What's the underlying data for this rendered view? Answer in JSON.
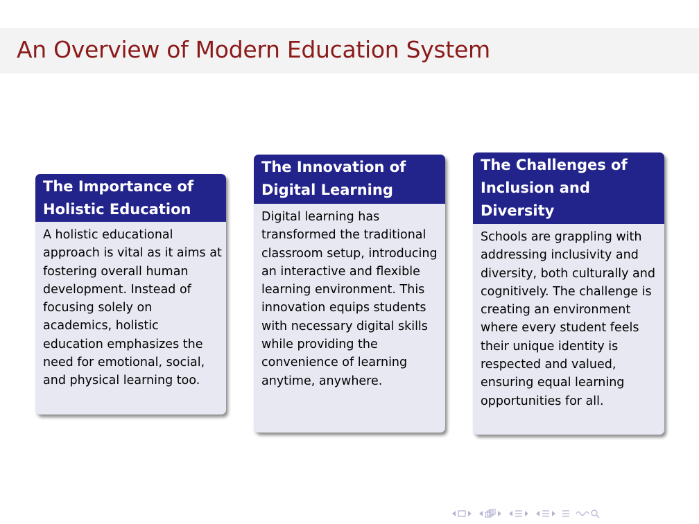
{
  "slide": {
    "title": "An Overview of Modern Education System"
  },
  "blocks": [
    {
      "title": "The Importance of Holistic Education",
      "body": "A holistic educational approach is vital as it aims at fostering overall human development. Instead of focusing solely on academics, holistic education emphasizes the need for emotional, social, and physical learning too."
    },
    {
      "title": "The Innovation of Digital Learning",
      "body": "Digital learning has transformed the traditional classroom setup, introducing an interactive and flexible learning environment. This innovation equips students with necessary digital skills while providing the convenience of learning anytime, anywhere."
    },
    {
      "title": "The Challenges of Inclusion and Diversity",
      "body": "Schools are grappling with addressing inclusivity and diversity, both culturally and cognitively. The challenge is creating an environment where every student feels their unique identity is respected and valued, ensuring equal learning opportunities for all."
    }
  ],
  "navigation": {
    "color": "#b5b5d2",
    "icons": [
      "nav-prev-arrow-icon",
      "nav-frame-icon",
      "nav-next-arrow-icon",
      "nav-subsection-icon",
      "nav-section-icon",
      "nav-part-icon",
      "nav-align-icon",
      "nav-search-icon"
    ]
  },
  "colors": {
    "title": "#8b1a1a",
    "block_header": "#23238c",
    "block_body": "#e8e8f3"
  }
}
